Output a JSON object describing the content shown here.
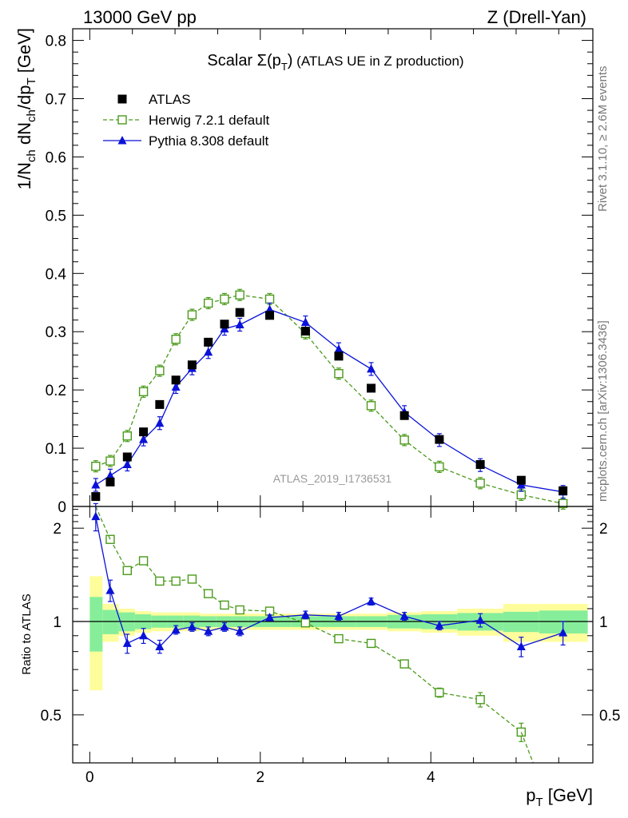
{
  "header": {
    "left": "13000 GeV pp",
    "right": "Z (Drell-Yan)"
  },
  "side_labels": {
    "rivet": "Rivet 3.1.10, ≥ 2.6M events",
    "mcplots": "mcplots.cern.ch [arXiv:1306.3436]"
  },
  "chart_data": [
    {
      "type": "scatter",
      "panel": "main",
      "title": "Scalar Σ(p_T) (ATLAS UE in Z production)",
      "title_parts": {
        "main": "Scalar ",
        "sigma": "Σ(p",
        "sub": "T",
        "close": ")",
        "rest": " (ATLAS UE in Z production)"
      },
      "ylabel": "1/N_ch dN_ch/dp_T [GeV]",
      "xlabel": "p_T [GeV]",
      "xlim": [
        -0.2,
        5.9
      ],
      "ylim": [
        0,
        0.82
      ],
      "yticks": [
        0,
        0.1,
        0.2,
        0.3,
        0.4,
        0.5,
        0.6,
        0.7,
        0.8
      ],
      "ytick_labels": [
        "0",
        "0.1",
        "0.2",
        "0.3",
        "0.4",
        "0.5",
        "0.6",
        "0.7",
        "0.8"
      ],
      "watermark": "ATLAS_2019_I1736531",
      "legend_position": "top-left",
      "series": [
        {
          "name": "ATLAS",
          "style": "data",
          "color": "#000000",
          "x": [
            0.07,
            0.24,
            0.44,
            0.63,
            0.82,
            1.01,
            1.2,
            1.39,
            1.58,
            1.76,
            2.11,
            2.53,
            2.92,
            3.3,
            3.69,
            4.1,
            4.58,
            5.06,
            5.55
          ],
          "y": [
            0.017,
            0.042,
            0.085,
            0.128,
            0.175,
            0.217,
            0.243,
            0.282,
            0.313,
            0.333,
            0.328,
            0.301,
            0.258,
            0.203,
            0.156,
            0.115,
            0.072,
            0.045,
            0.027
          ]
        },
        {
          "name": "Herwig 7.2.1 default",
          "style": "open-square-dashed",
          "color": "#4a9a1a",
          "x": [
            0.07,
            0.24,
            0.44,
            0.63,
            0.82,
            1.01,
            1.2,
            1.39,
            1.58,
            1.76,
            2.11,
            2.53,
            2.92,
            3.3,
            3.69,
            4.1,
            4.58,
            5.06,
            5.55
          ],
          "y": [
            0.069,
            0.078,
            0.121,
            0.197,
            0.233,
            0.287,
            0.329,
            0.349,
            0.356,
            0.363,
            0.356,
            0.297,
            0.228,
            0.173,
            0.114,
            0.068,
            0.04,
            0.02,
            0.005
          ]
        },
        {
          "name": "Pythia 8.308 default",
          "style": "filled-triangle-solid",
          "color": "#0a12d8",
          "x": [
            0.07,
            0.24,
            0.44,
            0.63,
            0.82,
            1.01,
            1.2,
            1.39,
            1.58,
            1.76,
            2.11,
            2.53,
            2.92,
            3.3,
            3.69,
            4.1,
            4.58,
            5.06,
            5.55
          ],
          "y": [
            0.037,
            0.053,
            0.072,
            0.115,
            0.143,
            0.205,
            0.237,
            0.265,
            0.305,
            0.312,
            0.338,
            0.316,
            0.27,
            0.236,
            0.162,
            0.114,
            0.071,
            0.037,
            0.025
          ]
        }
      ]
    },
    {
      "type": "scatter",
      "panel": "ratio",
      "ylabel": "Ratio to ATLAS",
      "xlabel": "p_T [GeV]",
      "xlim": [
        -0.2,
        5.9
      ],
      "ylim": [
        0.35,
        2.35
      ],
      "yscale": "log",
      "yticks": [
        0.5,
        1,
        2
      ],
      "ytick_labels": [
        "0.5",
        "1",
        "2"
      ],
      "xticks": [
        0,
        2,
        4
      ],
      "xtick_labels": [
        "0",
        "2",
        "4"
      ],
      "bin_edges": [
        0,
        0.15,
        0.34,
        0.53,
        0.72,
        0.91,
        1.1,
        1.29,
        1.48,
        1.67,
        1.86,
        2.36,
        2.71,
        3.12,
        3.49,
        3.89,
        4.31,
        4.85,
        5.27,
        5.84
      ],
      "bands": {
        "stat_half_width": [
          0.2,
          0.09,
          0.07,
          0.055,
          0.045,
          0.045,
          0.045,
          0.04,
          0.04,
          0.04,
          0.04,
          0.04,
          0.04,
          0.04,
          0.05,
          0.055,
          0.065,
          0.075,
          0.085
        ],
        "total_half_width": [
          0.4,
          0.14,
          0.1,
          0.08,
          0.07,
          0.07,
          0.07,
          0.06,
          0.06,
          0.06,
          0.06,
          0.06,
          0.06,
          0.06,
          0.07,
          0.08,
          0.1,
          0.14,
          0.14
        ],
        "stat_color": "#86ee9a",
        "total_color": "#fdfd9c"
      },
      "series": [
        {
          "name": "Herwig 7.2.1 default",
          "color": "#4a9a1a",
          "x": [
            0.24,
            0.44,
            0.63,
            0.82,
            1.01,
            1.2,
            1.39,
            1.58,
            1.76,
            2.11,
            2.53,
            2.92,
            3.3,
            3.69,
            4.1,
            4.58,
            5.06
          ],
          "y": [
            1.84,
            1.46,
            1.57,
            1.35,
            1.35,
            1.37,
            1.23,
            1.13,
            1.09,
            1.08,
            0.99,
            0.88,
            0.85,
            0.73,
            0.59,
            0.56,
            0.44
          ],
          "yerr": [
            0.05,
            0.04,
            0.04,
            0.03,
            0.03,
            0.03,
            0.02,
            0.02,
            0.02,
            0.02,
            0.02,
            0.02,
            0.02,
            0.02,
            0.02,
            0.03,
            0.03
          ]
        },
        {
          "name": "Pythia 8.308 default",
          "color": "#0a12d8",
          "x": [
            0.07,
            0.24,
            0.44,
            0.63,
            0.82,
            1.01,
            1.2,
            1.39,
            1.58,
            1.76,
            2.11,
            2.53,
            2.92,
            3.3,
            3.69,
            4.1,
            4.58,
            5.06,
            5.55
          ],
          "y": [
            2.18,
            1.26,
            0.85,
            0.9,
            0.83,
            0.94,
            0.96,
            0.93,
            0.96,
            0.93,
            1.03,
            1.05,
            1.04,
            1.16,
            1.04,
            0.97,
            1.01,
            0.83,
            0.92
          ],
          "yerr": [
            0.22,
            0.1,
            0.06,
            0.05,
            0.04,
            0.03,
            0.03,
            0.03,
            0.03,
            0.03,
            0.02,
            0.03,
            0.03,
            0.03,
            0.03,
            0.03,
            0.05,
            0.06,
            0.08
          ]
        }
      ]
    }
  ]
}
